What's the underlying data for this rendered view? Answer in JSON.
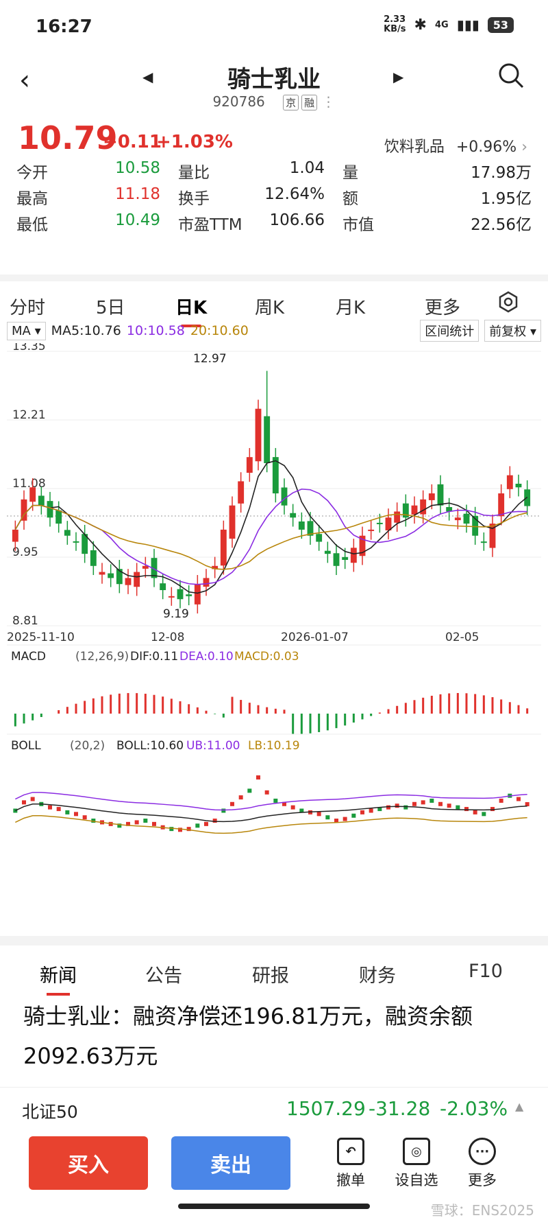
{
  "status": {
    "time": "16:27",
    "net_speed": "2.33\nKB/s",
    "net_type": "4G",
    "battery": "53"
  },
  "header": {
    "name": "骑士乳业",
    "code": "920786",
    "tag1": "京",
    "tag2": "融"
  },
  "quote": {
    "price": "10.79",
    "change": "+0.11",
    "change_pct": "+1.03%",
    "sector": "饮料乳品",
    "sector_pct": "+0.96%",
    "rows": [
      [
        {
          "l": "今开",
          "v": "10.58",
          "c": "down"
        },
        {
          "l": "量比",
          "v": "1.04",
          "c": ""
        },
        {
          "l": "量",
          "v": "17.98万",
          "c": ""
        }
      ],
      [
        {
          "l": "最高",
          "v": "11.18",
          "c": "up"
        },
        {
          "l": "换手",
          "v": "12.64%",
          "c": ""
        },
        {
          "l": "额",
          "v": "1.95亿",
          "c": ""
        }
      ],
      [
        {
          "l": "最低",
          "v": "10.49",
          "c": "down"
        },
        {
          "l": "市盈TTM",
          "v": "106.66",
          "c": ""
        },
        {
          "l": "市值",
          "v": "22.56亿",
          "c": ""
        }
      ]
    ]
  },
  "tabs": [
    "分时",
    "5日",
    "日K",
    "周K",
    "月K",
    "更多"
  ],
  "active_tab": "日K",
  "chart": {
    "ma_label": "MA",
    "ma5": "MA5:10.76",
    "ma10": "10:10.58",
    "ma20": "20:10.60",
    "range_btn": "区间统计",
    "adjust_btn": "前复权",
    "y_labels": [
      "13.35",
      "12.21",
      "11.08",
      "9.95",
      "8.81"
    ],
    "x_labels": [
      "2025-11-10",
      "12-08",
      "2026-01-07",
      "02-05"
    ],
    "high_mark": "12.97",
    "low_mark": "9.19",
    "macd_label": "MACD",
    "macd_params": "(12,26,9)",
    "dif": "DIF:0.11",
    "dea": "DEA:0.10",
    "macd": "MACD:0.03",
    "boll_label": "BOLL",
    "boll_params": "(20,2)",
    "boll": "BOLL:10.60",
    "ub": "UB:11.00",
    "lb": "LB:10.19"
  },
  "news_tabs": [
    "新闻",
    "公告",
    "研报",
    "财务",
    "F10"
  ],
  "news_title": "骑士乳业：融资净偿还196.81万元，融资余额2092.63万元",
  "index": {
    "name": "北证50",
    "value": "1507.29",
    "change": "-31.28",
    "pct": "-2.03%"
  },
  "actions": {
    "buy": "买入",
    "sell": "卖出",
    "cancel": "撤单",
    "watch": "设自选",
    "more": "更多"
  },
  "watermark": "雪球：ENS2025",
  "colors": {
    "up": "#e0312c",
    "down": "#1a9b3c",
    "ma10": "#8a2be2",
    "ma20": "#b8860b"
  }
}
